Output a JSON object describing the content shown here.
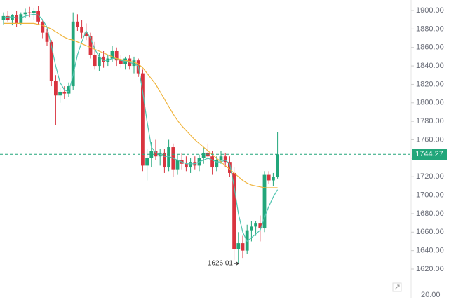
{
  "chart_data": {
    "type": "candlestick",
    "up_color": "#22a67a",
    "down_color": "#d9343f",
    "ylim": [
      1620,
      1900
    ],
    "yticks": [
      {
        "value": 1620,
        "label": "1620.00"
      },
      {
        "value": 1640,
        "label": "1640.00"
      },
      {
        "value": 1660,
        "label": "1660.00"
      },
      {
        "value": 1680,
        "label": "1680.00"
      },
      {
        "value": 1700,
        "label": "1700.00"
      },
      {
        "value": 1720,
        "label": "1720.00"
      },
      {
        "value": 1740,
        "label": "1740.00"
      },
      {
        "value": 1760,
        "label": "1760.00"
      },
      {
        "value": 1780,
        "label": "1780.00"
      },
      {
        "value": 1800,
        "label": "1800.00"
      },
      {
        "value": 1820,
        "label": "1820.00"
      },
      {
        "value": 1840,
        "label": "1840.00"
      },
      {
        "value": 1860,
        "label": "1860.00"
      },
      {
        "value": 1880,
        "label": "1880.00"
      },
      {
        "value": 1900,
        "label": "1900.00"
      }
    ],
    "open": [
      1890,
      1894,
      1890,
      1895,
      1886,
      1896,
      1898,
      1897,
      1900,
      1888,
      1876,
      1866,
      1824,
      1808,
      1812,
      1810,
      1818,
      1888,
      1882,
      1876,
      1872,
      1852,
      1840,
      1850,
      1844,
      1848,
      1856,
      1846,
      1842,
      1848,
      1840,
      1846,
      1832,
      1732,
      1740,
      1748,
      1742,
      1746,
      1730,
      1752,
      1728,
      1738,
      1734,
      1730,
      1736,
      1732,
      1740,
      1746,
      1742,
      1730,
      1738,
      1742,
      1736,
      1724,
      1642,
      1648,
      1640,
      1662,
      1666,
      1670,
      1664,
      1722,
      1716,
      1720
    ],
    "high": [
      1898,
      1900,
      1896,
      1900,
      1898,
      1902,
      1904,
      1903,
      1905,
      1890,
      1880,
      1868,
      1830,
      1816,
      1818,
      1822,
      1898,
      1896,
      1890,
      1886,
      1876,
      1866,
      1854,
      1856,
      1852,
      1862,
      1860,
      1852,
      1850,
      1852,
      1850,
      1848,
      1836,
      1750,
      1758,
      1760,
      1750,
      1750,
      1760,
      1756,
      1744,
      1746,
      1742,
      1740,
      1742,
      1744,
      1752,
      1756,
      1748,
      1742,
      1748,
      1746,
      1742,
      1730,
      1660,
      1656,
      1668,
      1672,
      1672,
      1678,
      1726,
      1726,
      1724,
      1768
    ],
    "low": [
      1885,
      1888,
      1884,
      1882,
      1884,
      1892,
      1893,
      1890,
      1885,
      1870,
      1862,
      1818,
      1776,
      1800,
      1804,
      1806,
      1814,
      1878,
      1870,
      1868,
      1848,
      1836,
      1834,
      1838,
      1840,
      1844,
      1840,
      1838,
      1836,
      1836,
      1832,
      1828,
      1726,
      1716,
      1730,
      1738,
      1732,
      1724,
      1726,
      1720,
      1722,
      1728,
      1726,
      1724,
      1728,
      1726,
      1734,
      1738,
      1722,
      1726,
      1734,
      1730,
      1720,
      1630,
      1626,
      1632,
      1636,
      1650,
      1656,
      1650,
      1660,
      1712,
      1710,
      1718
    ],
    "close": [
      1894,
      1890,
      1895,
      1886,
      1896,
      1898,
      1897,
      1900,
      1888,
      1876,
      1866,
      1824,
      1808,
      1812,
      1810,
      1818,
      1888,
      1882,
      1876,
      1872,
      1852,
      1840,
      1850,
      1844,
      1848,
      1856,
      1846,
      1842,
      1848,
      1840,
      1846,
      1832,
      1732,
      1740,
      1748,
      1742,
      1746,
      1730,
      1752,
      1728,
      1738,
      1734,
      1730,
      1736,
      1732,
      1740,
      1746,
      1742,
      1730,
      1738,
      1742,
      1736,
      1724,
      1642,
      1648,
      1640,
      1662,
      1666,
      1670,
      1664,
      1722,
      1716,
      1720,
      1744.27
    ],
    "series": [
      {
        "color": "#4fc4b0",
        "values": [
          1892,
          1893,
          1893,
          1892,
          1892,
          1894,
          1895,
          1896,
          1895,
          1890,
          1882,
          1862,
          1840,
          1822,
          1814,
          1812,
          1830,
          1852,
          1866,
          1878,
          1870,
          1858,
          1850,
          1846,
          1846,
          1848,
          1848,
          1846,
          1845,
          1844,
          1842,
          1840,
          1812,
          1780,
          1752,
          1746,
          1744,
          1742,
          1742,
          1740,
          1738,
          1736,
          1734,
          1734,
          1734,
          1736,
          1738,
          1740,
          1738,
          1736,
          1736,
          1738,
          1734,
          1710,
          1680,
          1660,
          1650,
          1654,
          1658,
          1662,
          1676,
          1688,
          1698,
          1706
        ]
      },
      {
        "color": "#f0b43c",
        "values": [
          1886,
          1886,
          1886,
          1886,
          1886,
          1886,
          1886,
          1886,
          1885,
          1884,
          1882,
          1880,
          1877,
          1874,
          1871,
          1869,
          1868,
          1866,
          1864,
          1862,
          1860,
          1858,
          1856,
          1854,
          1852,
          1850,
          1848,
          1847,
          1846,
          1845,
          1844,
          1842,
          1838,
          1832,
          1826,
          1820,
          1812,
          1804,
          1796,
          1788,
          1781,
          1775,
          1770,
          1765,
          1760,
          1756,
          1752,
          1748,
          1744,
          1740,
          1736,
          1732,
          1728,
          1724,
          1720,
          1716,
          1713,
          1711,
          1710,
          1709,
          1708,
          1708,
          1708,
          1708
        ]
      }
    ],
    "last_price": 1744.27,
    "low_marker": 1626.01,
    "volume_tick": {
      "value": 20,
      "label": "20.00"
    }
  }
}
